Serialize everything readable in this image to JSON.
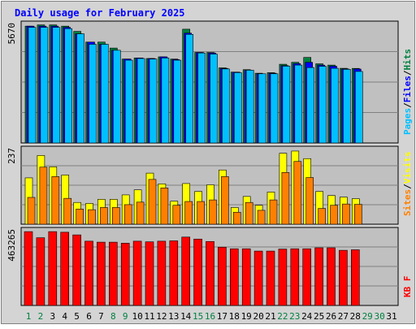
{
  "chart_data": {
    "type": "bar",
    "title": "Daily usage for February 2025",
    "x": [
      "1",
      "2",
      "3",
      "4",
      "5",
      "6",
      "7",
      "8",
      "9",
      "10",
      "11",
      "12",
      "13",
      "14",
      "15",
      "16",
      "17",
      "18",
      "19",
      "20",
      "21",
      "22",
      "23",
      "24",
      "25",
      "26",
      "27",
      "28",
      "29",
      "30",
      "31"
    ],
    "weekend_days": [
      "1",
      "2",
      "8",
      "9",
      "15",
      "16",
      "22",
      "23",
      "29",
      "30"
    ],
    "colors": {
      "title": "#0000ff",
      "hits": "#008040",
      "files": "#0000ff",
      "pages": "#00c0ff",
      "visits": "#ffff00",
      "sites": "#ff8000",
      "kbytes": "#ff0000",
      "weekend_label": "#008040",
      "weekday_label": "#000000",
      "plot_bg": "#c0c0c0",
      "frame_bg": "#d4d4d4"
    },
    "panels": [
      {
        "ymax_label": "5670",
        "ymax": 5670,
        "legend": [
          {
            "text": "Pages",
            "color": "#00c0ff"
          },
          {
            "text": "/",
            "color": "#000000"
          },
          {
            "text": "Files",
            "color": "#0000ff"
          },
          {
            "text": "/",
            "color": "#000000"
          },
          {
            "text": "Hits",
            "color": "#008040"
          }
        ],
        "series": [
          {
            "key": "hits",
            "values": [
              5586,
              5645,
              5645,
              5586,
              5335,
              4824,
              4824,
              4538,
              4012,
              4064,
              4038,
              4117,
              4012,
              5440,
              4328,
              4328,
              3592,
              3388,
              3506,
              3335,
              3362,
              3764,
              3856,
              4090,
              3785,
              3724,
              3570,
              3565
            ]
          },
          {
            "key": "files",
            "values": [
              5586,
              5586,
              5586,
              5527,
              5219,
              4824,
              4718,
              4433,
              4012,
              4064,
              4038,
              4117,
              3986,
              5251,
              4328,
              4302,
              3566,
              3388,
              3480,
              3309,
              3335,
              3699,
              3796,
              3856,
              3724,
              3671,
              3540,
              3535
            ]
          },
          {
            "key": "pages",
            "values": [
              5527,
              5527,
              5527,
              5468,
              5219,
              4718,
              4718,
              4433,
              3959,
              4038,
              4012,
              4064,
              3959,
              5192,
              4302,
              4249,
              3540,
              3362,
              3480,
              3309,
              3309,
              3672,
              3724,
              3606,
              3666,
              3571,
              3520,
              3420
            ]
          }
        ]
      },
      {
        "ymax_label": "237",
        "ymax": 237,
        "legend": [
          {
            "text": "Sites",
            "color": "#ff8000"
          },
          {
            "text": "/",
            "color": "#000000"
          },
          {
            "text": "Visits",
            "color": "#ffff00"
          }
        ],
        "series": [
          {
            "key": "visits",
            "values": [
              147,
              218,
              182,
              156,
              69,
              66,
              79,
              79,
              93,
              109,
              162,
              128,
              73,
              129,
              104,
              125,
              172,
              53,
              88,
              60,
              102,
              225,
              232,
              208,
              104,
              91,
              86,
              81
            ]
          },
          {
            "key": "sites",
            "values": [
              85,
              181,
              151,
              82,
              48,
              46,
              53,
              53,
              62,
              70,
              142,
              115,
              60,
              72,
              72,
              77,
              151,
              38,
              69,
              44,
              77,
              164,
              199,
              148,
              50,
              60,
              64,
              63
            ]
          }
        ]
      },
      {
        "ymax_label": "463265",
        "ymax": 463265,
        "legend": [
          {
            "text": "KB F",
            "color": "#ff0000"
          }
        ],
        "series": [
          {
            "key": "kbytes",
            "values": [
              457600,
              419770,
              457600,
              453900,
              437400,
              398400,
              392300,
              392300,
              386000,
              398400,
              394400,
              398400,
              400500,
              423900,
              411500,
              396400,
              361300,
              351300,
              351300,
              337000,
              337000,
              349400,
              351300,
              351300,
              357500,
              357500,
              341900,
              345100
            ]
          }
        ]
      }
    ]
  }
}
